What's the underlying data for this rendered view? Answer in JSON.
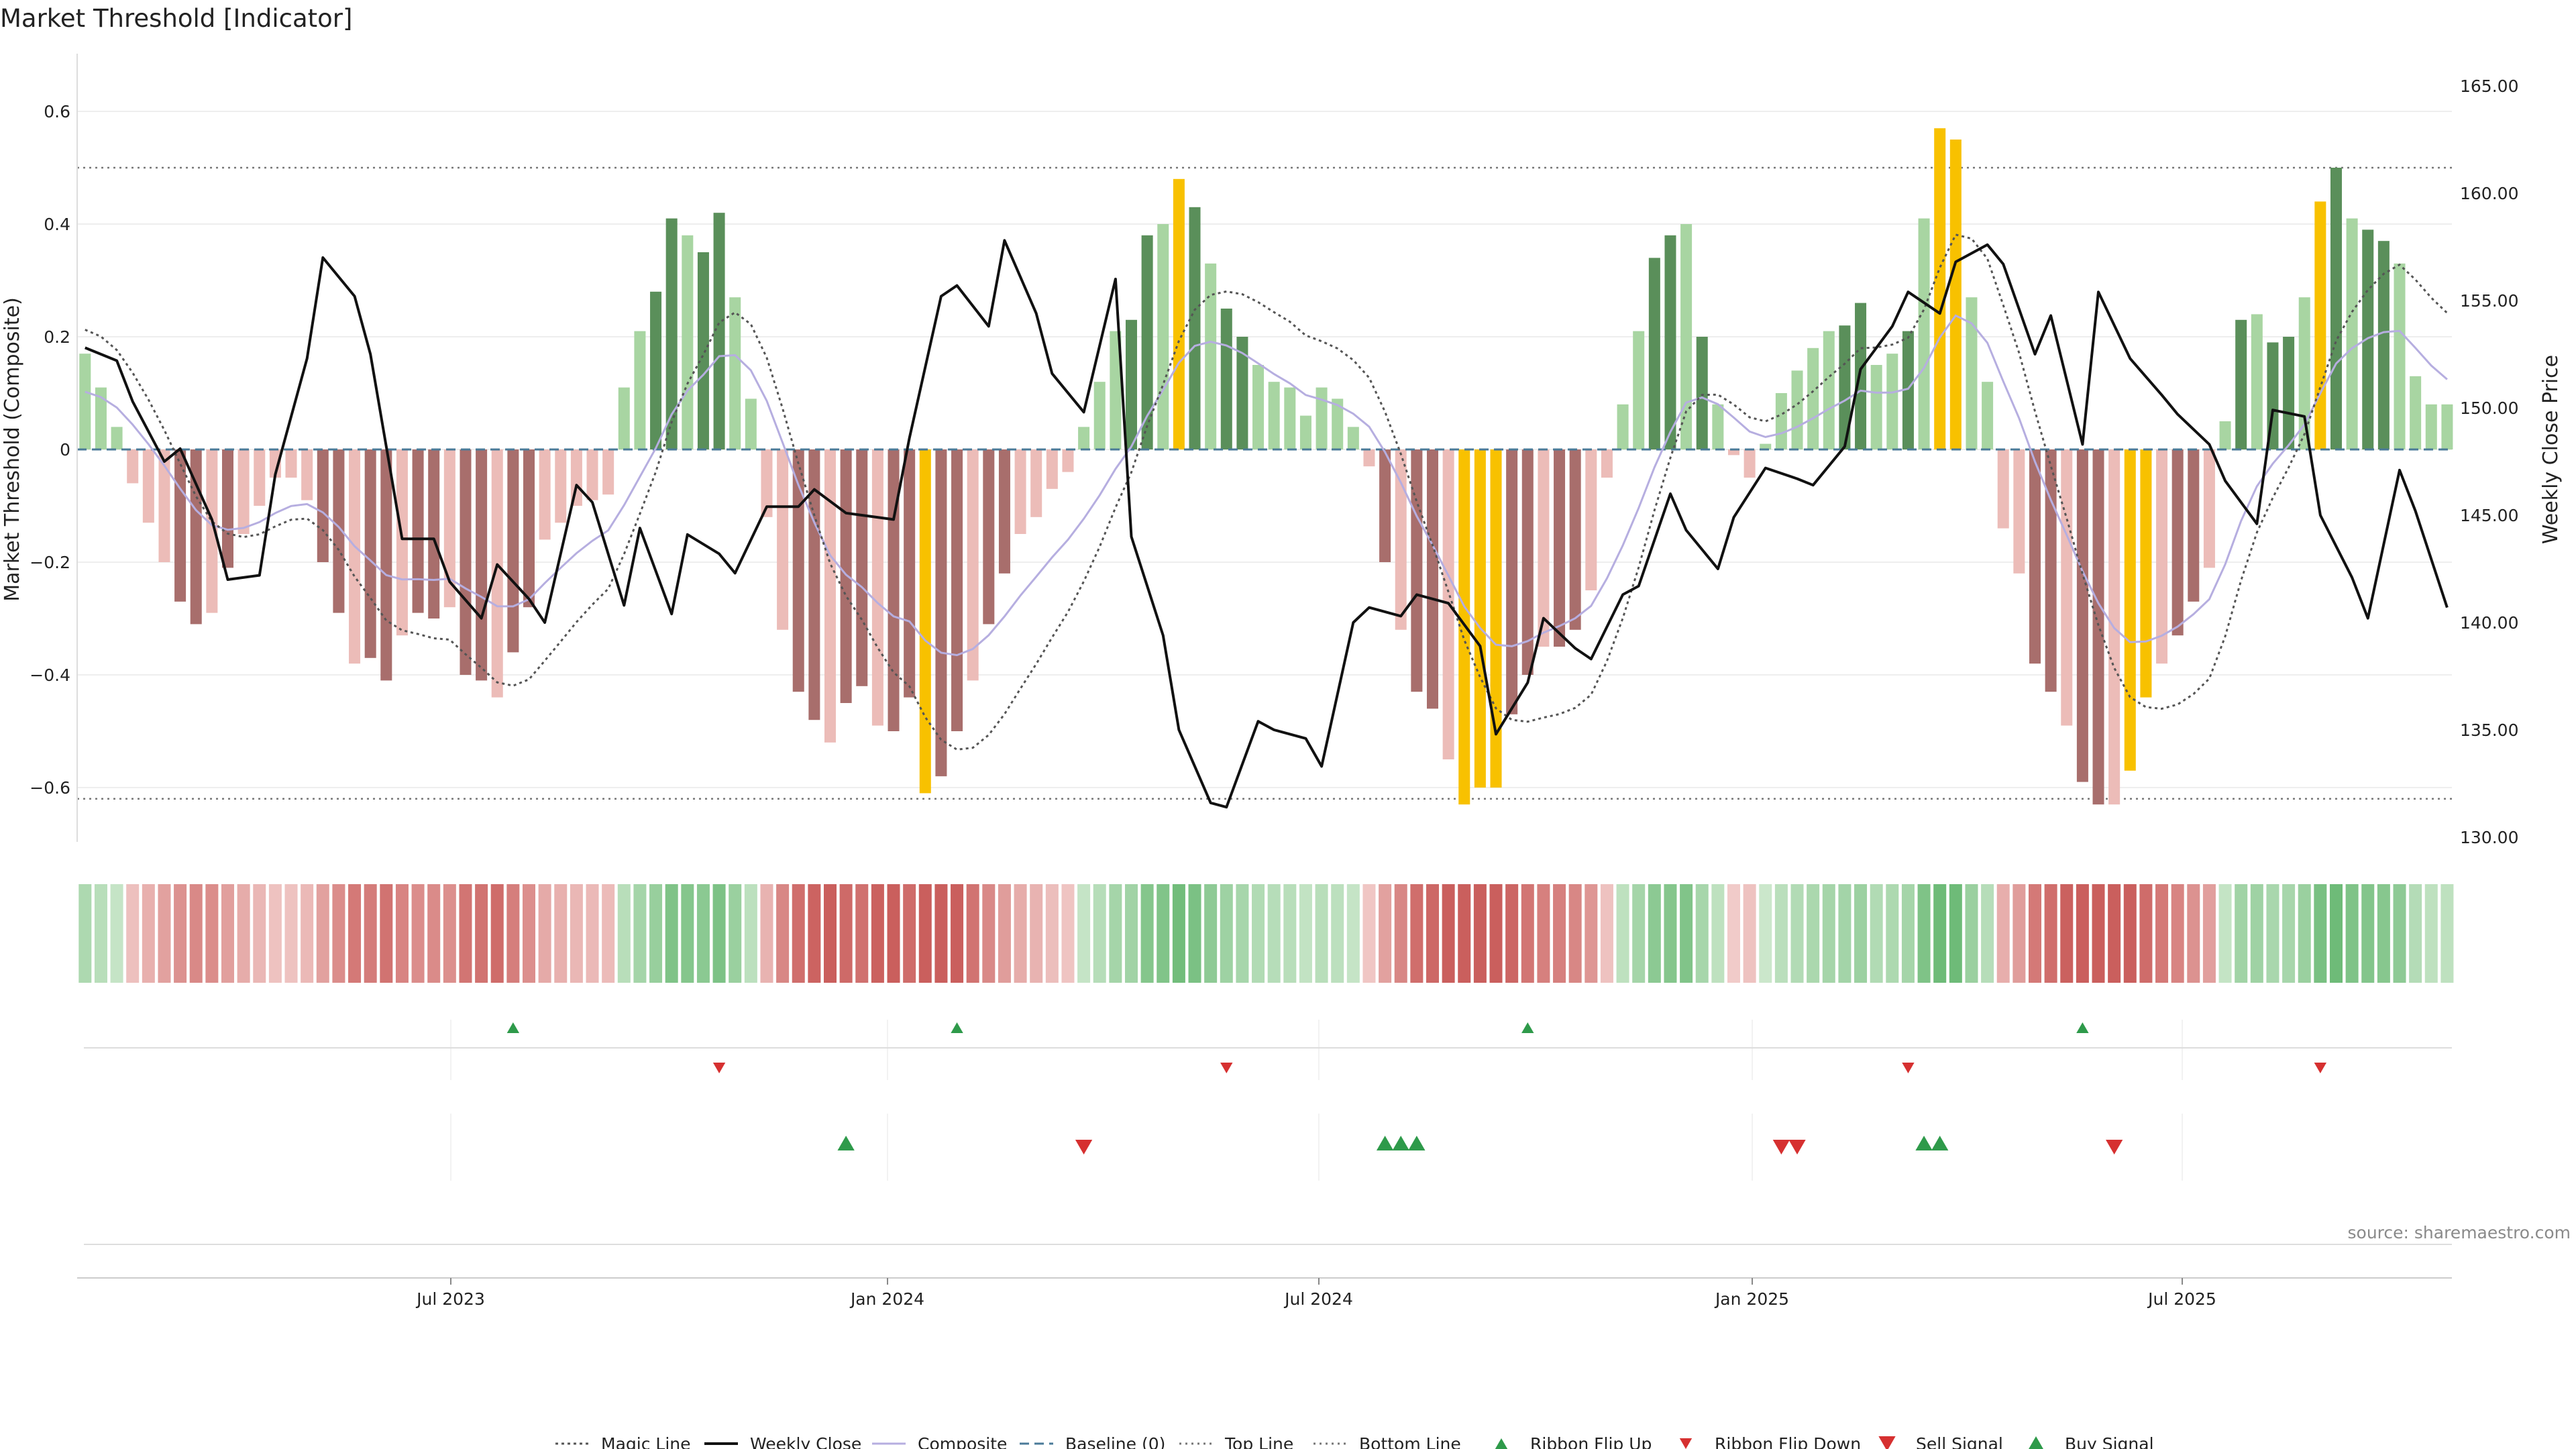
{
  "title": "Market Threshold [Indicator]",
  "source": "source: sharemaestro.com",
  "chart_data": {
    "type": "bar",
    "x_start": "2023-02-26",
    "x_step_days": 7,
    "x_ticks": [
      "Jul 2023",
      "Jan 2024",
      "Jul 2024",
      "Jan 2025",
      "Jul 2025"
    ],
    "ylabel_left": "Market Threshold (Composite)",
    "ylabel_right": "Weekly Close Price",
    "ylim_left": [
      -0.7,
      0.7
    ],
    "ylim_right": [
      130.0,
      165.0
    ],
    "yticks_left": [
      "0.6",
      "0.4",
      "0.2",
      "0",
      "−0.2",
      "−0.4",
      "−0.6"
    ],
    "yticks_right": [
      "165.00",
      "160.00",
      "155.00",
      "150.00",
      "145.00",
      "140.00",
      "135.00",
      "130.00"
    ],
    "top_line": 0.5,
    "bottom_line": -0.62,
    "grid": true,
    "legend_placement": "bottom-center",
    "colors": {
      "strong_green": "#5a8f5a",
      "light_green": "#a8d5a2",
      "strong_red": "#a86e6c",
      "light_red": "#ecbcb8",
      "extreme": "#f8c100",
      "close": "#111111",
      "composite": "#b6aee0",
      "magic": "#555555",
      "baseline": "#4a7a98",
      "buy": "#2e9a4a",
      "sell": "#d63030"
    },
    "series": [
      {
        "name": "Composite",
        "kind": "bars",
        "values": [
          0.17,
          0.11,
          0.04,
          -0.06,
          -0.13,
          -0.2,
          -0.27,
          -0.31,
          -0.29,
          -0.21,
          -0.15,
          -0.1,
          -0.05,
          -0.05,
          -0.09,
          -0.2,
          -0.29,
          -0.38,
          -0.37,
          -0.41,
          -0.33,
          -0.29,
          -0.3,
          -0.28,
          -0.4,
          -0.41,
          -0.44,
          -0.36,
          -0.28,
          -0.16,
          -0.13,
          -0.1,
          -0.09,
          -0.08,
          0.11,
          0.21,
          0.28,
          0.41,
          0.38,
          0.35,
          0.42,
          0.27,
          0.09,
          -0.12,
          -0.32,
          -0.43,
          -0.48,
          -0.52,
          -0.45,
          -0.42,
          -0.49,
          -0.5,
          -0.44,
          -0.61,
          -0.58,
          -0.5,
          -0.41,
          -0.31,
          -0.22,
          -0.15,
          -0.12,
          -0.07,
          -0.04,
          0.04,
          0.12,
          0.21,
          0.23,
          0.38,
          0.4,
          0.48,
          0.43,
          0.33,
          0.25,
          0.2,
          0.15,
          0.12,
          0.11,
          0.06,
          0.11,
          0.09,
          0.04,
          -0.03,
          -0.2,
          -0.32,
          -0.43,
          -0.46,
          -0.55,
          -0.63,
          -0.6,
          -0.6,
          -0.47,
          -0.4,
          -0.35,
          -0.35,
          -0.32,
          -0.25,
          -0.05,
          0.08,
          0.21,
          0.34,
          0.38,
          0.4,
          0.2,
          0.08,
          -0.01,
          -0.05,
          0.01,
          0.1,
          0.14,
          0.18,
          0.21,
          0.22,
          0.26,
          0.15,
          0.17,
          0.21,
          0.41,
          0.57,
          0.55,
          0.27,
          0.12,
          -0.14,
          -0.22,
          -0.38,
          -0.43,
          -0.49,
          -0.59,
          -0.63,
          -0.63,
          -0.57,
          -0.44,
          -0.38,
          -0.33,
          -0.27,
          -0.21,
          0.05,
          0.23,
          0.24,
          0.19,
          0.2,
          0.27,
          0.44,
          0.5,
          0.41,
          0.39,
          0.37,
          0.33,
          0.13,
          0.08,
          0.08
        ],
        "extreme_weeks": [
          53,
          69,
          87,
          88,
          89,
          117,
          118,
          129,
          130,
          141
        ]
      },
      {
        "name": "Weekly Close",
        "kind": "line",
        "values": [
          152.8,
          152.2,
          150.3,
          147.5,
          148.1,
          144.8,
          142.0,
          142.2,
          146.9,
          152.3,
          157.0,
          155.2,
          152.5,
          143.9,
          143.9,
          141.9,
          140.2,
          142.7,
          141.1,
          140.0,
          146.4,
          145.6,
          140.8,
          144.4,
          140.4,
          144.1,
          143.2,
          142.3,
          145.4,
          145.4,
          146.2,
          145.1,
          145.0,
          144.8,
          148.6,
          155.2,
          155.7,
          153.8,
          157.8,
          154.4,
          151.6,
          149.8,
          156.0,
          144.0,
          139.4,
          135.0,
          131.6,
          131.4,
          135.4,
          135.0,
          134.6,
          133.3,
          140.0,
          140.7,
          140.3,
          141.3,
          140.9,
          138.9,
          134.8,
          137.2,
          140.2,
          138.8,
          138.3,
          141.3,
          141.7,
          146.0,
          144.3,
          142.5,
          144.9,
          147.2,
          146.7,
          146.4,
          148.2,
          151.8,
          153.8,
          155.4,
          154.4,
          156.8,
          157.6,
          156.7,
          152.5,
          154.3,
          148.3,
          155.4,
          152.3,
          150.6,
          149.7,
          148.3,
          146.6,
          144.6,
          149.9,
          149.6,
          145.0,
          142.1,
          140.2,
          147.1,
          145.2,
          140.7
        ],
        "note_first_points": 60
      }
    ],
    "legend": [
      "Magic Line",
      "Weekly Close",
      "Composite",
      "Baseline (0)",
      "Top Line",
      "Bottom Line",
      "Ribbon Flip Up",
      "Ribbon Flip Down",
      "Sell Signal",
      "Buy Signal"
    ],
    "ribbon": "composite strength strip shown as a row of coloured cells",
    "ribbon_flip_up_weeks": [
      27,
      55,
      91,
      126
    ],
    "ribbon_flip_down_weeks": [
      40,
      72,
      115,
      141
    ],
    "buy_signal_weeks": [
      48,
      82,
      83,
      84,
      116,
      117
    ],
    "sell_signal_weeks": [
      63,
      107,
      108,
      128
    ]
  }
}
